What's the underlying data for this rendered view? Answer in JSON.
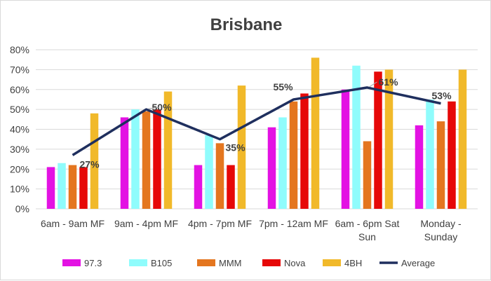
{
  "chart_data": {
    "type": "bar",
    "title": "Brisbane",
    "xlabel": "",
    "ylabel": "",
    "ylim": [
      0,
      80
    ],
    "yticks": [
      "0%",
      "10%",
      "20%",
      "30%",
      "40%",
      "50%",
      "60%",
      "70%",
      "80%"
    ],
    "grid": true,
    "legend_position": "bottom",
    "categories": [
      [
        "6am - 9am MF"
      ],
      [
        "9am - 4pm MF"
      ],
      [
        "4pm - 7pm MF"
      ],
      [
        "7pm - 12am MF"
      ],
      [
        "6am - 6pm Sat",
        "Sun"
      ],
      [
        "Monday -",
        "Sunday"
      ]
    ],
    "series": [
      {
        "name": "97.3",
        "color": "#e312e3",
        "values": [
          21,
          46,
          22,
          41,
          60,
          42
        ]
      },
      {
        "name": "B105",
        "color": "#8ffcfc",
        "values": [
          23,
          50,
          37,
          46,
          72,
          55
        ]
      },
      {
        "name": "MMM",
        "color": "#e4761f",
        "values": [
          22,
          49,
          33,
          54,
          34,
          44
        ]
      },
      {
        "name": "Nova",
        "color": "#e60808",
        "values": [
          21,
          50,
          22,
          58,
          69,
          54
        ]
      },
      {
        "name": "4BH",
        "color": "#f1b92a",
        "values": [
          48,
          59,
          62,
          76,
          70,
          70
        ]
      }
    ],
    "line_series": {
      "name": "Average",
      "color": "#1f2f5e",
      "values": [
        27,
        50,
        35,
        55,
        61,
        53
      ],
      "data_labels": [
        "27%",
        "50%",
        "35%",
        "55%",
        "61%",
        "53%"
      ]
    }
  }
}
